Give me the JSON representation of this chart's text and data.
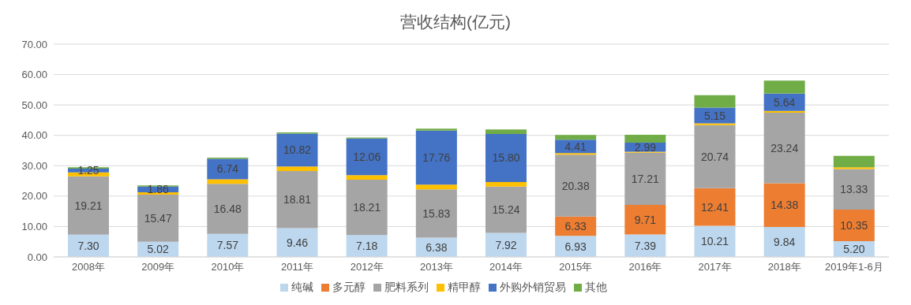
{
  "chart_data": {
    "type": "bar",
    "title": "营收结构(亿元)",
    "stacked": true,
    "grid": "y",
    "legend": "bottom",
    "categories": [
      "2008年",
      "2009年",
      "2010年",
      "2011年",
      "2012年",
      "2013年",
      "2014年",
      "2015年",
      "2016年",
      "2017年",
      "2018年",
      "2019年1-6月"
    ],
    "ylim": [
      0,
      70
    ],
    "yticks": [
      {
        "value": 0,
        "label": "0.00"
      },
      {
        "value": 10,
        "label": "10.00"
      },
      {
        "value": 20,
        "label": "20.00"
      },
      {
        "value": 30,
        "label": "30.00"
      },
      {
        "value": 40,
        "label": "40.00"
      },
      {
        "value": 50,
        "label": "50.00"
      },
      {
        "value": 60,
        "label": "60.00"
      },
      {
        "value": 70,
        "label": "70.00"
      }
    ],
    "series": [
      {
        "name": "纯碱",
        "color": "#bdd7ee",
        "values": [
          7.3,
          5.02,
          7.57,
          9.46,
          7.18,
          6.38,
          7.92,
          6.93,
          7.39,
          10.21,
          9.84,
          5.2
        ],
        "value_labels": [
          "7.30",
          "5.02",
          "7.57",
          "9.46",
          "7.18",
          "6.38",
          "7.92",
          "6.93",
          "7.39",
          "10.21",
          "9.84",
          "5.20"
        ]
      },
      {
        "name": "多元醇",
        "color": "#ed7d31",
        "values": [
          null,
          null,
          null,
          null,
          null,
          null,
          null,
          6.33,
          9.71,
          12.41,
          14.38,
          10.35
        ],
        "value_labels": [
          null,
          null,
          null,
          null,
          null,
          null,
          null,
          "6.33",
          "9.71",
          "12.41",
          "14.38",
          "10.35"
        ]
      },
      {
        "name": "肥料系列",
        "color": "#a5a5a5",
        "values": [
          19.21,
          15.47,
          16.48,
          18.81,
          18.21,
          15.83,
          15.24,
          20.38,
          17.21,
          20.74,
          23.24,
          13.33
        ],
        "value_labels": [
          "19.21",
          "15.47",
          "16.48",
          "18.81",
          "18.21",
          "15.83",
          "15.24",
          "20.38",
          "17.21",
          "20.74",
          "23.24",
          "13.33"
        ]
      },
      {
        "name": "精甲醇",
        "color": "#ffc000",
        "values": [
          1.3,
          0.8,
          1.5,
          1.5,
          1.5,
          1.6,
          1.5,
          0.5,
          0.3,
          0.6,
          0.6,
          0.6
        ]
      },
      {
        "name": "外购外销贸易",
        "color": "#4472c4",
        "values": [
          1.25,
          1.86,
          6.74,
          10.82,
          12.06,
          17.76,
          15.8,
          4.41,
          2.99,
          5.15,
          5.64,
          null
        ],
        "value_labels": [
          "1.25",
          "1.86",
          "6.74",
          "10.82",
          "12.06",
          "17.76",
          "15.80",
          "4.41",
          "2.99",
          "5.15",
          "5.64",
          null
        ]
      },
      {
        "name": "其他",
        "color": "#70ad47",
        "values": [
          0.4,
          0.4,
          0.4,
          0.4,
          0.3,
          0.6,
          1.5,
          1.6,
          2.6,
          4.1,
          4.3,
          3.8
        ]
      }
    ]
  }
}
